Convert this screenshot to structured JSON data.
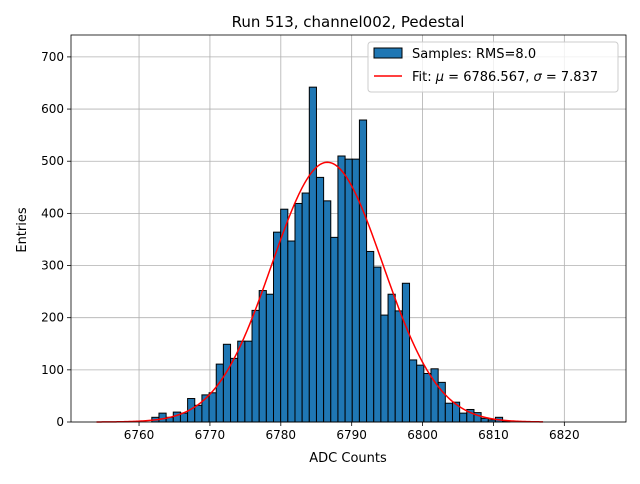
{
  "chart_data": {
    "type": "bar",
    "title": "Run 513, channel002, Pedestal",
    "xlabel": "ADC Counts",
    "ylabel": "Entries",
    "xlim": [
      6750.4,
      6828.7
    ],
    "ylim": [
      0,
      742
    ],
    "grid": true,
    "legend_placement": "top-right",
    "x_ticks": [
      6760,
      6770,
      6780,
      6790,
      6800,
      6810,
      6820
    ],
    "y_ticks": [
      0,
      100,
      200,
      300,
      400,
      500,
      600,
      700
    ],
    "histogram": {
      "name": "Samples: RMS=8.0",
      "bin_start": 6761.8,
      "bin_width": 1.01,
      "color": "#1f77b4",
      "counts": [
        9,
        17,
        9,
        19,
        17,
        45,
        32,
        52,
        56,
        111,
        149,
        122,
        155,
        155,
        214,
        252,
        245,
        364,
        408,
        347,
        419,
        439,
        642,
        469,
        424,
        354,
        510,
        504,
        504,
        579,
        327,
        297,
        205,
        245,
        213,
        266,
        119,
        109,
        93,
        102,
        76,
        36,
        38,
        17,
        24,
        18,
        7,
        4,
        9,
        2
      ]
    },
    "fit": {
      "name_prefix": "Fit: ",
      "name_mu": "μ",
      "name_mid": " = 6786.567, ",
      "name_sigma": "σ",
      "name_end": " = 7.837",
      "mu": 6786.567,
      "sigma": 7.837,
      "amplitude": 498,
      "x_range": [
        6754,
        6817
      ],
      "color": "#ff0000"
    }
  }
}
